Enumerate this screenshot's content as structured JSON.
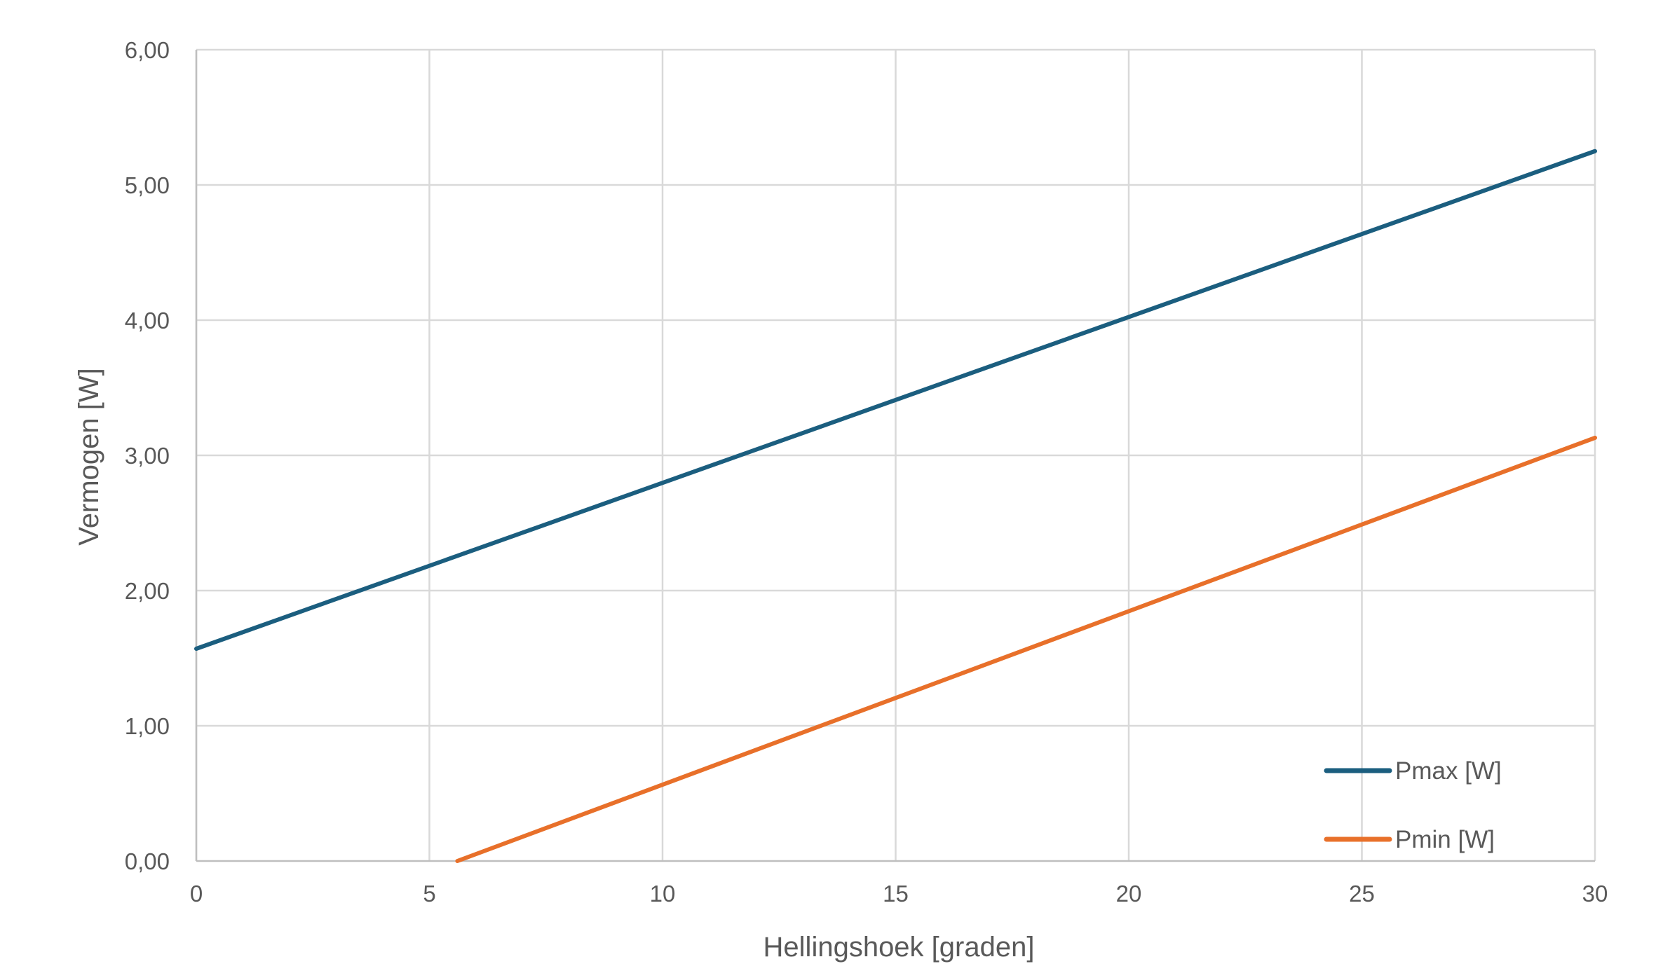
{
  "chart_data": {
    "type": "line",
    "xlabel": "Hellingshoek [graden]",
    "ylabel": "Vermogen [W]",
    "xlim": [
      0,
      30
    ],
    "ylim": [
      0,
      6
    ],
    "x_ticks": [
      "0",
      "5",
      "10",
      "15",
      "20",
      "25",
      "30"
    ],
    "y_ticks": [
      "0,00",
      "1,00",
      "2,00",
      "3,00",
      "4,00",
      "5,00",
      "6,00"
    ],
    "grid": true,
    "legend_position": "bottom-right",
    "series": [
      {
        "name": "Pmax [W]",
        "color": "#1b5e7f",
        "x": [
          0,
          30
        ],
        "y": [
          1.57,
          5.25
        ]
      },
      {
        "name": "Pmin [W]",
        "color": "#e8702a",
        "x": [
          5.6,
          30
        ],
        "y": [
          0.0,
          3.13
        ]
      }
    ]
  }
}
